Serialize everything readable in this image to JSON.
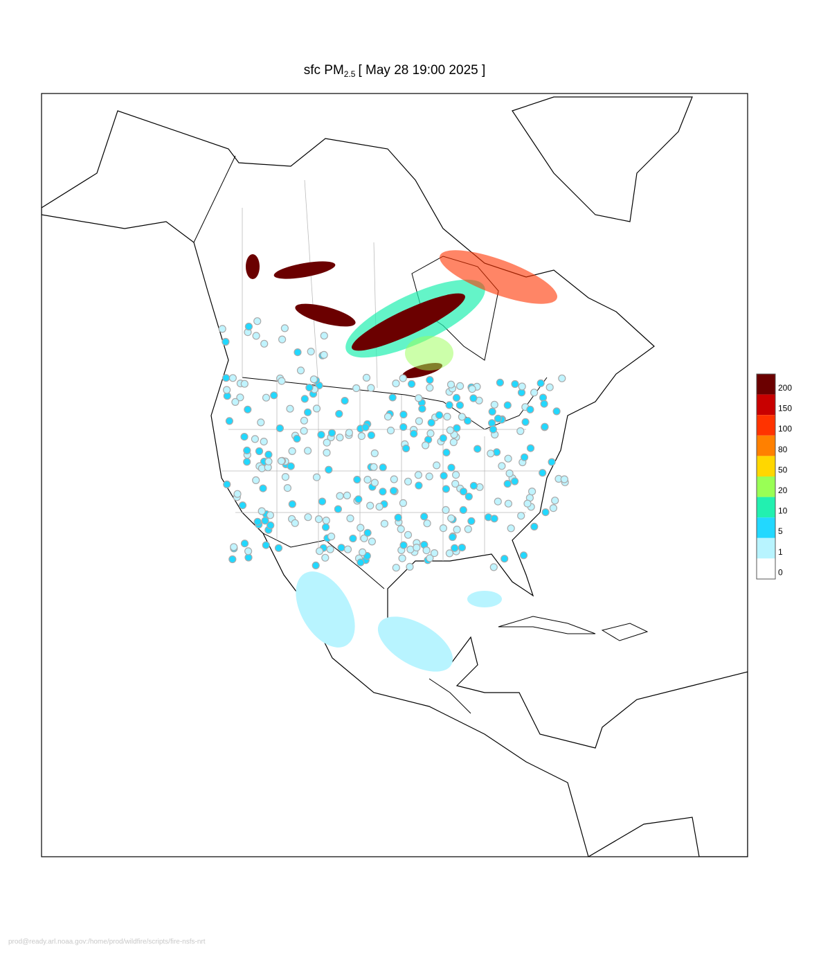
{
  "title": {
    "prefix": "sfc PM",
    "subscript": "2.5",
    "suffix": "[ May 28 19:00 2025 ]"
  },
  "legend": {
    "levels": [
      200,
      150,
      100,
      80,
      50,
      20,
      10,
      5,
      1,
      0
    ],
    "colors": [
      "#6b0000",
      "#c80000",
      "#ff3300",
      "#ff8000",
      "#ffd700",
      "#99ff55",
      "#22f0b0",
      "#22d8ff",
      "#b8f4ff",
      "#ffffff"
    ]
  },
  "footer": "prod@ready.arl.noaa.gov:/home/prod/wildfire/scripts/fire-nsfs-nrt"
}
